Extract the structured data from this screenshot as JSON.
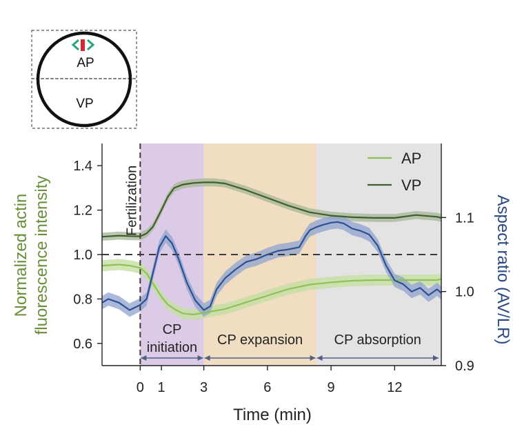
{
  "inset": {
    "top_label": "AP",
    "bottom_label": "VP"
  },
  "colors": {
    "ap": "#8fc15a",
    "ap_band": "#c6dea2",
    "vp": "#3f5d2e",
    "vp_band": "#a9b99a",
    "aspect": "#2f4f8f",
    "aspect_band": "#8fa3cf",
    "phase_initiation": "#dccbe6",
    "phase_expansion": "#f0ddc2",
    "phase_absorption": "#e3e3e3",
    "inset_red": "#d8262e",
    "inset_green": "#2ba37a"
  },
  "chart_data": {
    "type": "line",
    "xlabel": "Time (min)",
    "ylabel_left": "Normalized actin\nfluorescence intensity",
    "ylabel_right": "Aspect ratio (AV/LR)",
    "xlim": [
      -1.8,
      14.2
    ],
    "ylim_left": [
      0.5,
      1.5
    ],
    "ylim_right": [
      0.9,
      1.2
    ],
    "x_ticks": [
      0,
      1,
      3,
      6,
      9,
      12
    ],
    "y_ticks_left": [
      0.6,
      0.8,
      1.0,
      1.2,
      1.4
    ],
    "y_ticks_right": [
      0.9,
      1.0,
      1.1
    ],
    "reference_line_left": 1.0,
    "event_line": {
      "x": 0,
      "label": "Fertilization"
    },
    "phases": [
      {
        "name": "CP\ninitiation",
        "start": 0,
        "end": 3
      },
      {
        "name": "CP expansion",
        "start": 3,
        "end": 8.3
      },
      {
        "name": "CP absorption",
        "start": 8.3,
        "end": 14.2
      }
    ],
    "legend": [
      "AP",
      "VP"
    ],
    "series": [
      {
        "name": "AP",
        "axis": "left",
        "band": 0.025,
        "x": [
          -1.8,
          -1,
          -0.5,
          0,
          0.3,
          0.6,
          1,
          1.3,
          1.6,
          2,
          2.5,
          3,
          4,
          5,
          6,
          7,
          8,
          9,
          10,
          11,
          12,
          13,
          14,
          14.2
        ],
        "y": [
          0.95,
          0.955,
          0.95,
          0.94,
          0.915,
          0.87,
          0.81,
          0.775,
          0.755,
          0.735,
          0.73,
          0.738,
          0.755,
          0.785,
          0.815,
          0.845,
          0.865,
          0.875,
          0.882,
          0.885,
          0.885,
          0.885,
          0.885,
          0.89
        ]
      },
      {
        "name": "VP",
        "axis": "left",
        "band": 0.018,
        "x": [
          -1.8,
          -1,
          -0.5,
          0,
          0.3,
          0.6,
          1,
          1.3,
          1.6,
          2,
          2.5,
          3,
          3.5,
          4,
          5,
          6,
          7,
          8,
          9,
          10,
          11,
          12,
          13,
          14,
          14.2
        ],
        "y": [
          1.08,
          1.085,
          1.083,
          1.082,
          1.095,
          1.125,
          1.2,
          1.26,
          1.3,
          1.315,
          1.322,
          1.325,
          1.325,
          1.32,
          1.29,
          1.255,
          1.22,
          1.19,
          1.175,
          1.168,
          1.165,
          1.165,
          1.178,
          1.17,
          1.165
        ]
      },
      {
        "name": "Aspect ratio",
        "axis": "right",
        "band": 0.009,
        "x": [
          -1.8,
          -1.5,
          -1,
          -0.5,
          0,
          0.3,
          0.6,
          0.9,
          1.2,
          1.5,
          1.8,
          2.2,
          2.6,
          3,
          3.3,
          3.6,
          4,
          4.5,
          5,
          5.5,
          6,
          6.5,
          7,
          7.5,
          7.8,
          8,
          8.3,
          8.6,
          9,
          9.3,
          9.6,
          10,
          10.4,
          10.8,
          11.2,
          11.6,
          12,
          12.4,
          12.8,
          13.2,
          13.6,
          14,
          14.2
        ],
        "y": [
          0.985,
          0.99,
          0.985,
          0.975,
          0.982,
          0.99,
          1.025,
          1.06,
          1.075,
          1.065,
          1.045,
          1.012,
          0.988,
          0.975,
          0.98,
          1.003,
          1.018,
          1.03,
          1.04,
          1.044,
          1.05,
          1.055,
          1.057,
          1.06,
          1.075,
          1.083,
          1.087,
          1.09,
          1.093,
          1.094,
          1.092,
          1.085,
          1.082,
          1.077,
          1.062,
          1.035,
          1.015,
          1.01,
          1.0,
          1.005,
          0.995,
          1.003,
          0.998
        ]
      }
    ]
  }
}
